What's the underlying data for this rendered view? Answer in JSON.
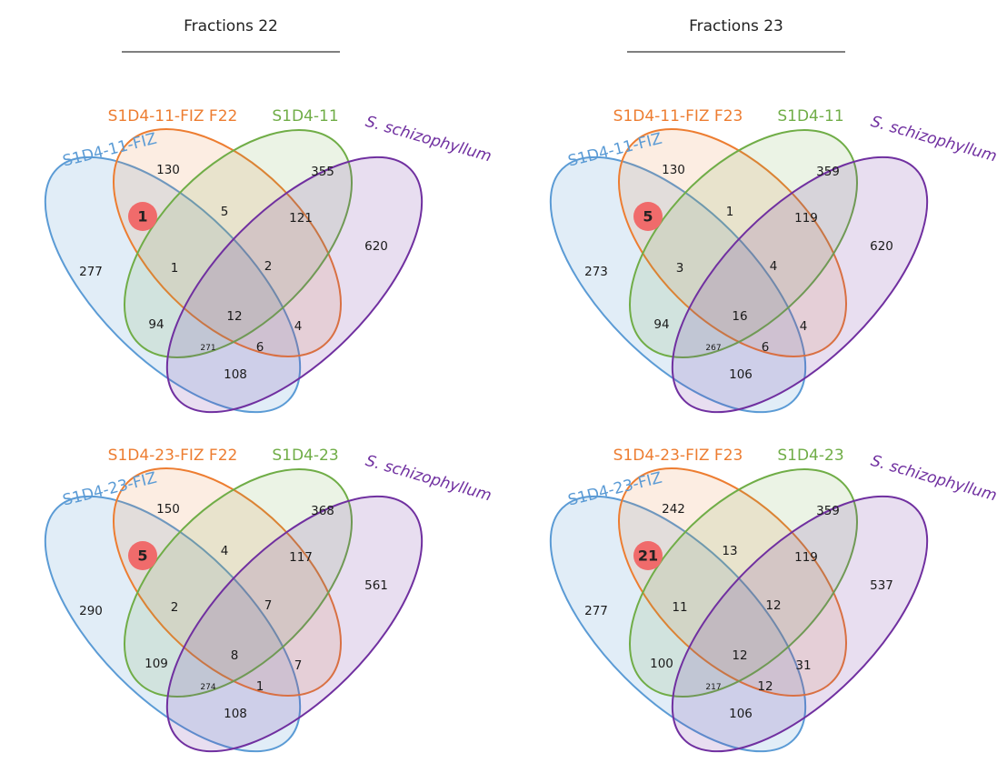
{
  "columns": [
    {
      "title": "Fractions 22"
    },
    {
      "title": "Fractions 23"
    }
  ],
  "colors": {
    "blue": "#5b9bd5",
    "orange": "#ed7d31",
    "green": "#70ad47",
    "purple": "#7030a0",
    "highlight": "#f06b6b",
    "rule": "#7f7f7f"
  },
  "venns": [
    {
      "sets": [
        "S1D4-11-FIZ",
        "S1D4-11-FIZ F22",
        "S1D4-11",
        "S. schizophyllum"
      ],
      "counts": {
        "a_only": "277",
        "b_only": "130",
        "c_only": "355",
        "d_only": "620",
        "ab": "1",
        "bc": "5",
        "cd": "121",
        "abc": "1",
        "bcd": "2",
        "ac": "94",
        "abcd": "12",
        "acd": "271",
        "abd": "6",
        "bd": "4",
        "ad": "108"
      }
    },
    {
      "sets": [
        "S1D4-11-FIZ",
        "S1D4-11-FIZ F23",
        "S1D4-11",
        "S. schizophyllum"
      ],
      "counts": {
        "a_only": "273",
        "b_only": "130",
        "c_only": "359",
        "d_only": "620",
        "ab": "5",
        "bc": "1",
        "cd": "119",
        "abc": "3",
        "bcd": "4",
        "ac": "94",
        "abcd": "16",
        "acd": "267",
        "abd": "6",
        "bd": "4",
        "ad": "106"
      }
    },
    {
      "sets": [
        "S1D4-23-FIZ",
        "S1D4-23-FIZ F22",
        "S1D4-23",
        "S. schizophyllum"
      ],
      "counts": {
        "a_only": "290",
        "b_only": "150",
        "c_only": "368",
        "d_only": "561",
        "ab": "5",
        "bc": "4",
        "cd": "117",
        "abc": "2",
        "bcd": "7",
        "ac": "109",
        "abcd": "8",
        "acd": "274",
        "abd": "1",
        "bd": "7",
        "ad": "108"
      }
    },
    {
      "sets": [
        "S1D4-23-FIZ",
        "S1D4-23-FIZ F23",
        "S1D4-23",
        "S. schizophyllum"
      ],
      "counts": {
        "a_only": "277",
        "b_only": "242",
        "c_only": "359",
        "d_only": "537",
        "ab": "21",
        "bc": "13",
        "cd": "119",
        "abc": "11",
        "bcd": "12",
        "ac": "100",
        "abcd": "12",
        "acd": "217",
        "abd": "12",
        "bd": "31",
        "ad": "106"
      }
    }
  ]
}
